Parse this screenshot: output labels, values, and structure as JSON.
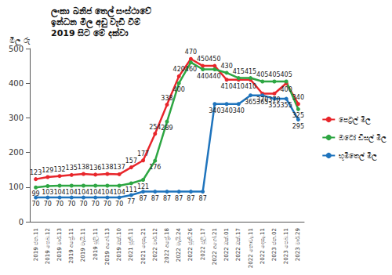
{
  "chart_data": {
    "type": "line",
    "title": "ලංකා ඛනිජ තෙල් සංස්ථාවේ\nඉන්ධන මිල අඩු වැඩි වීම්\n2019 සිට මේ දක්වා",
    "y_label": "මිල රු",
    "categories": [
      "2019 ජන.11",
      "2019 පෙබ.12",
      "2019 මාර්.13",
      "2019 අප්‍රේ.11",
      "2019 මැයි.11",
      "2019 ජූලි.11",
      "2019 අගෝ.13",
      "2019 ඔක්.10",
      "2021 ජූනි.11",
      "2021 දෙසැ.21",
      "2022 මාර්.12",
      "2022 අප්‍රේ.18",
      "2022 මැයි.24",
      "2022 ජූනි.26",
      "2022 ජූලි.17",
      "2022 අගෝ.21",
      "2022 ඔක්.01",
      "2022 ඔක්.17",
      "2022 නොවැ.11",
      "2022 දෙසැ.11",
      "2023 ජන.02",
      "2023 පෙබ.11",
      "2023 මාර්.29"
    ],
    "series": [
      {
        "name": "පෙට්‍රල් මිල",
        "color": "#e8262b",
        "values": [
          123,
          129,
          132,
          135,
          138,
          136,
          138,
          137,
          157,
          177,
          254,
          338,
          420,
          470,
          450,
          450,
          410,
          410,
          410,
          370,
          370,
          400,
          340
        ]
      },
      {
        "name": "ඔටෝ ඩීසල් මිල",
        "color": "#2ea643",
        "values": [
          99,
          103,
          104,
          104,
          104,
          104,
          104,
          104,
          111,
          121,
          176,
          289,
          400,
          460,
          440,
          440,
          430,
          415,
          415,
          405,
          405,
          405,
          325
        ]
      },
      {
        "name": "භූමිතෙල් මිල",
        "color": "#1f74bd",
        "values": [
          70,
          70,
          70,
          70,
          70,
          70,
          70,
          70,
          77,
          87,
          87,
          87,
          87,
          87,
          87,
          340,
          340,
          340,
          365,
          365,
          355,
          355,
          295
        ]
      }
    ],
    "ylim": [
      0,
      500
    ],
    "yticks": [
      0,
      100,
      200,
      300,
      400,
      500
    ],
    "grid": false,
    "legend": "right",
    "data_labels": true,
    "marker": "circle"
  }
}
